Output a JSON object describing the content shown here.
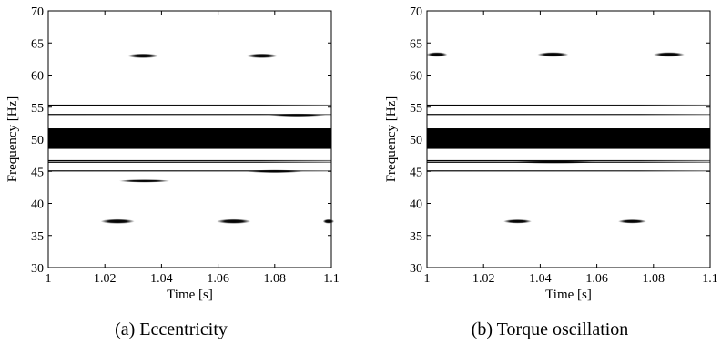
{
  "chart_data": [
    {
      "type": "heatmap",
      "caption": "(a)  Eccentricity",
      "xlabel": "Time [s]",
      "ylabel": "Frequency [Hz]",
      "xlim": [
        1,
        1.1
      ],
      "ylim": [
        30,
        70
      ],
      "xticks": [
        1,
        1.02,
        1.04,
        1.06,
        1.08,
        1.1
      ],
      "xtick_labels": [
        "1",
        "1.02",
        "1.04",
        "1.06",
        "1.08",
        "1.1"
      ],
      "yticks": [
        30,
        35,
        40,
        45,
        50,
        55,
        60,
        65,
        70
      ],
      "ytick_labels": [
        "30",
        "35",
        "40",
        "45",
        "50",
        "55",
        "60",
        "65",
        "70"
      ],
      "bands": [
        {
          "y_low": 48.5,
          "y_high": 51.7,
          "x_start": 1.0,
          "x_end": 1.1
        },
        {
          "y_low": 55.2,
          "y_high": 55.4,
          "x_start": 1.0,
          "x_end": 1.1
        },
        {
          "y_low": 53.8,
          "y_high": 53.95,
          "x_start": 1.0,
          "x_end": 1.1
        },
        {
          "y_low": 46.6,
          "y_high": 46.75,
          "x_start": 1.0,
          "x_end": 1.1
        },
        {
          "y_low": 46.35,
          "y_high": 46.5,
          "x_start": 1.0,
          "x_end": 1.1
        },
        {
          "y_low": 45.0,
          "y_high": 45.15,
          "x_start": 1.0,
          "x_end": 1.1
        }
      ],
      "blobs": [
        {
          "x": 1.0335,
          "y": 63.0,
          "width": 0.011,
          "height": 0.45
        },
        {
          "x": 1.0755,
          "y": 63.0,
          "width": 0.011,
          "height": 0.45
        },
        {
          "x": 1.0245,
          "y": 37.2,
          "width": 0.012,
          "height": 0.45
        },
        {
          "x": 1.0655,
          "y": 37.2,
          "width": 0.012,
          "height": 0.45
        },
        {
          "x": 1.099,
          "y": 37.2,
          "width": 0.004,
          "height": 0.4
        },
        {
          "x": 1.088,
          "y": 53.7,
          "width": 0.02,
          "height": 0.35
        },
        {
          "x": 1.034,
          "y": 43.5,
          "width": 0.018,
          "height": 0.18
        },
        {
          "x": 1.08,
          "y": 45.0,
          "width": 0.02,
          "height": 0.2
        }
      ]
    },
    {
      "type": "heatmap",
      "caption": "(b)  Torque oscillation",
      "xlabel": "Time [s]",
      "ylabel": "Frequency [Hz]",
      "xlim": [
        1,
        1.1
      ],
      "ylim": [
        30,
        70
      ],
      "xticks": [
        1,
        1.02,
        1.04,
        1.06,
        1.08,
        1.1
      ],
      "xtick_labels": [
        "1",
        "1.02",
        "1.04",
        "1.06",
        "1.08",
        "1.1"
      ],
      "yticks": [
        30,
        35,
        40,
        45,
        50,
        55,
        60,
        65,
        70
      ],
      "ytick_labels": [
        "30",
        "35",
        "40",
        "45",
        "50",
        "55",
        "60",
        "65",
        "70"
      ],
      "bands": [
        {
          "y_low": 48.5,
          "y_high": 51.7,
          "x_start": 1.0,
          "x_end": 1.1
        },
        {
          "y_low": 55.2,
          "y_high": 55.4,
          "x_start": 1.0,
          "x_end": 1.1
        },
        {
          "y_low": 53.8,
          "y_high": 53.95,
          "x_start": 1.0,
          "x_end": 1.1
        },
        {
          "y_low": 46.6,
          "y_high": 46.75,
          "x_start": 1.0,
          "x_end": 1.1
        },
        {
          "y_low": 46.35,
          "y_high": 46.5,
          "x_start": 1.0,
          "x_end": 1.1
        },
        {
          "y_low": 45.0,
          "y_high": 45.15,
          "x_start": 1.0,
          "x_end": 1.1
        }
      ],
      "blobs": [
        {
          "x": 1.0035,
          "y": 63.2,
          "width": 0.0075,
          "height": 0.45
        },
        {
          "x": 1.0445,
          "y": 63.2,
          "width": 0.011,
          "height": 0.45
        },
        {
          "x": 1.0855,
          "y": 63.2,
          "width": 0.011,
          "height": 0.45
        },
        {
          "x": 1.032,
          "y": 37.2,
          "width": 0.01,
          "height": 0.35
        },
        {
          "x": 1.0725,
          "y": 37.2,
          "width": 0.01,
          "height": 0.35
        },
        {
          "x": 1.045,
          "y": 46.45,
          "width": 0.03,
          "height": 0.18
        }
      ]
    }
  ]
}
